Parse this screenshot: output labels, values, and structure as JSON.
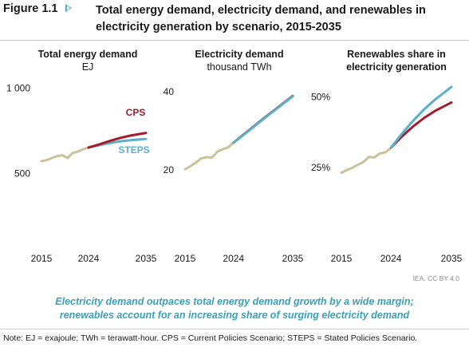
{
  "figure": {
    "number": "Figure 1.1",
    "title_line1": "Total energy demand, electricity demand, and renewables in",
    "title_line2": "electricity generation by scenario, 2015-2035"
  },
  "credit": "IEA. CC BY 4.0",
  "caption": {
    "line1": "Electricity demand outpaces total energy demand growth by a wide margin;",
    "line2": "renewables account for an increasing share of surging electricity demand"
  },
  "note": "Note: EJ = exajoule; TWh = terawatt-hour. CPS = Current Policies Scenario; STEPS = Stated Policies Scenario.",
  "colors": {
    "historical": "#c8c39a",
    "cps": "#a51c2c",
    "steps": "#5ab0c8",
    "accent_arrow": "#4eb1c9",
    "caption": "#3aa0b8"
  },
  "chart_data": [
    {
      "type": "line",
      "title": "Total energy demand",
      "unit": "EJ",
      "xlim": [
        2015,
        2035
      ],
      "ylim": [
        450,
        1050
      ],
      "xticks": [
        {
          "v": 2015,
          "label": "2015"
        },
        {
          "v": 2024,
          "label": "2024"
        },
        {
          "v": 2035,
          "label": "2035"
        }
      ],
      "yticks": [
        {
          "v": 500,
          "label": "500"
        },
        {
          "v": 1000,
          "label": "1 000"
        }
      ],
      "grid": false,
      "series": [
        {
          "key": "historical",
          "x": [
            2015,
            2016,
            2017,
            2018,
            2019,
            2020,
            2021,
            2022,
            2023,
            2024
          ],
          "y": [
            572,
            578,
            590,
            602,
            606,
            590,
            620,
            628,
            642,
            652
          ]
        },
        {
          "key": "steps",
          "name": "STEPS",
          "x": [
            2024,
            2026,
            2028,
            2030,
            2032,
            2035
          ],
          "y": [
            652,
            665,
            678,
            688,
            695,
            702
          ]
        },
        {
          "key": "cps",
          "name": "CPS",
          "x": [
            2024,
            2026,
            2028,
            2030,
            2032,
            2035
          ],
          "y": [
            652,
            670,
            690,
            708,
            722,
            738
          ]
        }
      ]
    },
    {
      "type": "line",
      "title": "Electricity demand",
      "unit": "thousand TWh",
      "xlim": [
        2015,
        2035
      ],
      "ylim": [
        17,
        43
      ],
      "xticks": [
        {
          "v": 2015,
          "label": "2015"
        },
        {
          "v": 2024,
          "label": "2024"
        },
        {
          "v": 2035,
          "label": "2035"
        }
      ],
      "yticks": [
        {
          "v": 20,
          "label": "20"
        },
        {
          "v": 40,
          "label": "40"
        }
      ],
      "grid": false,
      "series": [
        {
          "key": "historical",
          "x": [
            2015,
            2016,
            2017,
            2018,
            2019,
            2020,
            2021,
            2022,
            2023,
            2024
          ],
          "y": [
            20.2,
            21.0,
            21.9,
            23.0,
            23.3,
            23.2,
            24.7,
            25.3,
            25.8,
            27.0
          ]
        },
        {
          "key": "cps",
          "x": [
            2024,
            2026,
            2028,
            2030,
            2032,
            2035
          ],
          "y": [
            27.0,
            29.2,
            31.4,
            33.6,
            35.7,
            38.9
          ]
        },
        {
          "key": "steps",
          "x": [
            2024,
            2026,
            2028,
            2030,
            2032,
            2035
          ],
          "y": [
            27.0,
            29.1,
            31.3,
            33.5,
            35.6,
            38.8
          ]
        }
      ]
    },
    {
      "type": "line",
      "title": "Renewables share in electricity generation",
      "unit": "",
      "xlim": [
        2015,
        2035
      ],
      "ylim": [
        20,
        56
      ],
      "xticks": [
        {
          "v": 2015,
          "label": "2015"
        },
        {
          "v": 2024,
          "label": "2024"
        },
        {
          "v": 2035,
          "label": "2035"
        }
      ],
      "yticks": [
        {
          "v": 25,
          "label": "25%"
        },
        {
          "v": 50,
          "label": "50%"
        }
      ],
      "grid": false,
      "series": [
        {
          "key": "historical",
          "x": [
            2015,
            2016,
            2017,
            2018,
            2019,
            2020,
            2021,
            2022,
            2023,
            2024
          ],
          "y": [
            23.2,
            24.2,
            25.0,
            26.0,
            27.0,
            28.8,
            28.6,
            30.0,
            30.4,
            32.0
          ]
        },
        {
          "key": "cps",
          "x": [
            2024,
            2026,
            2028,
            2030,
            2032,
            2035
          ],
          "y": [
            32.0,
            36.0,
            39.5,
            42.5,
            45.0,
            48.0
          ]
        },
        {
          "key": "steps",
          "x": [
            2024,
            2026,
            2028,
            2030,
            2032,
            2035
          ],
          "y": [
            32.0,
            37.0,
            41.5,
            45.5,
            49.0,
            53.5
          ]
        }
      ]
    }
  ]
}
